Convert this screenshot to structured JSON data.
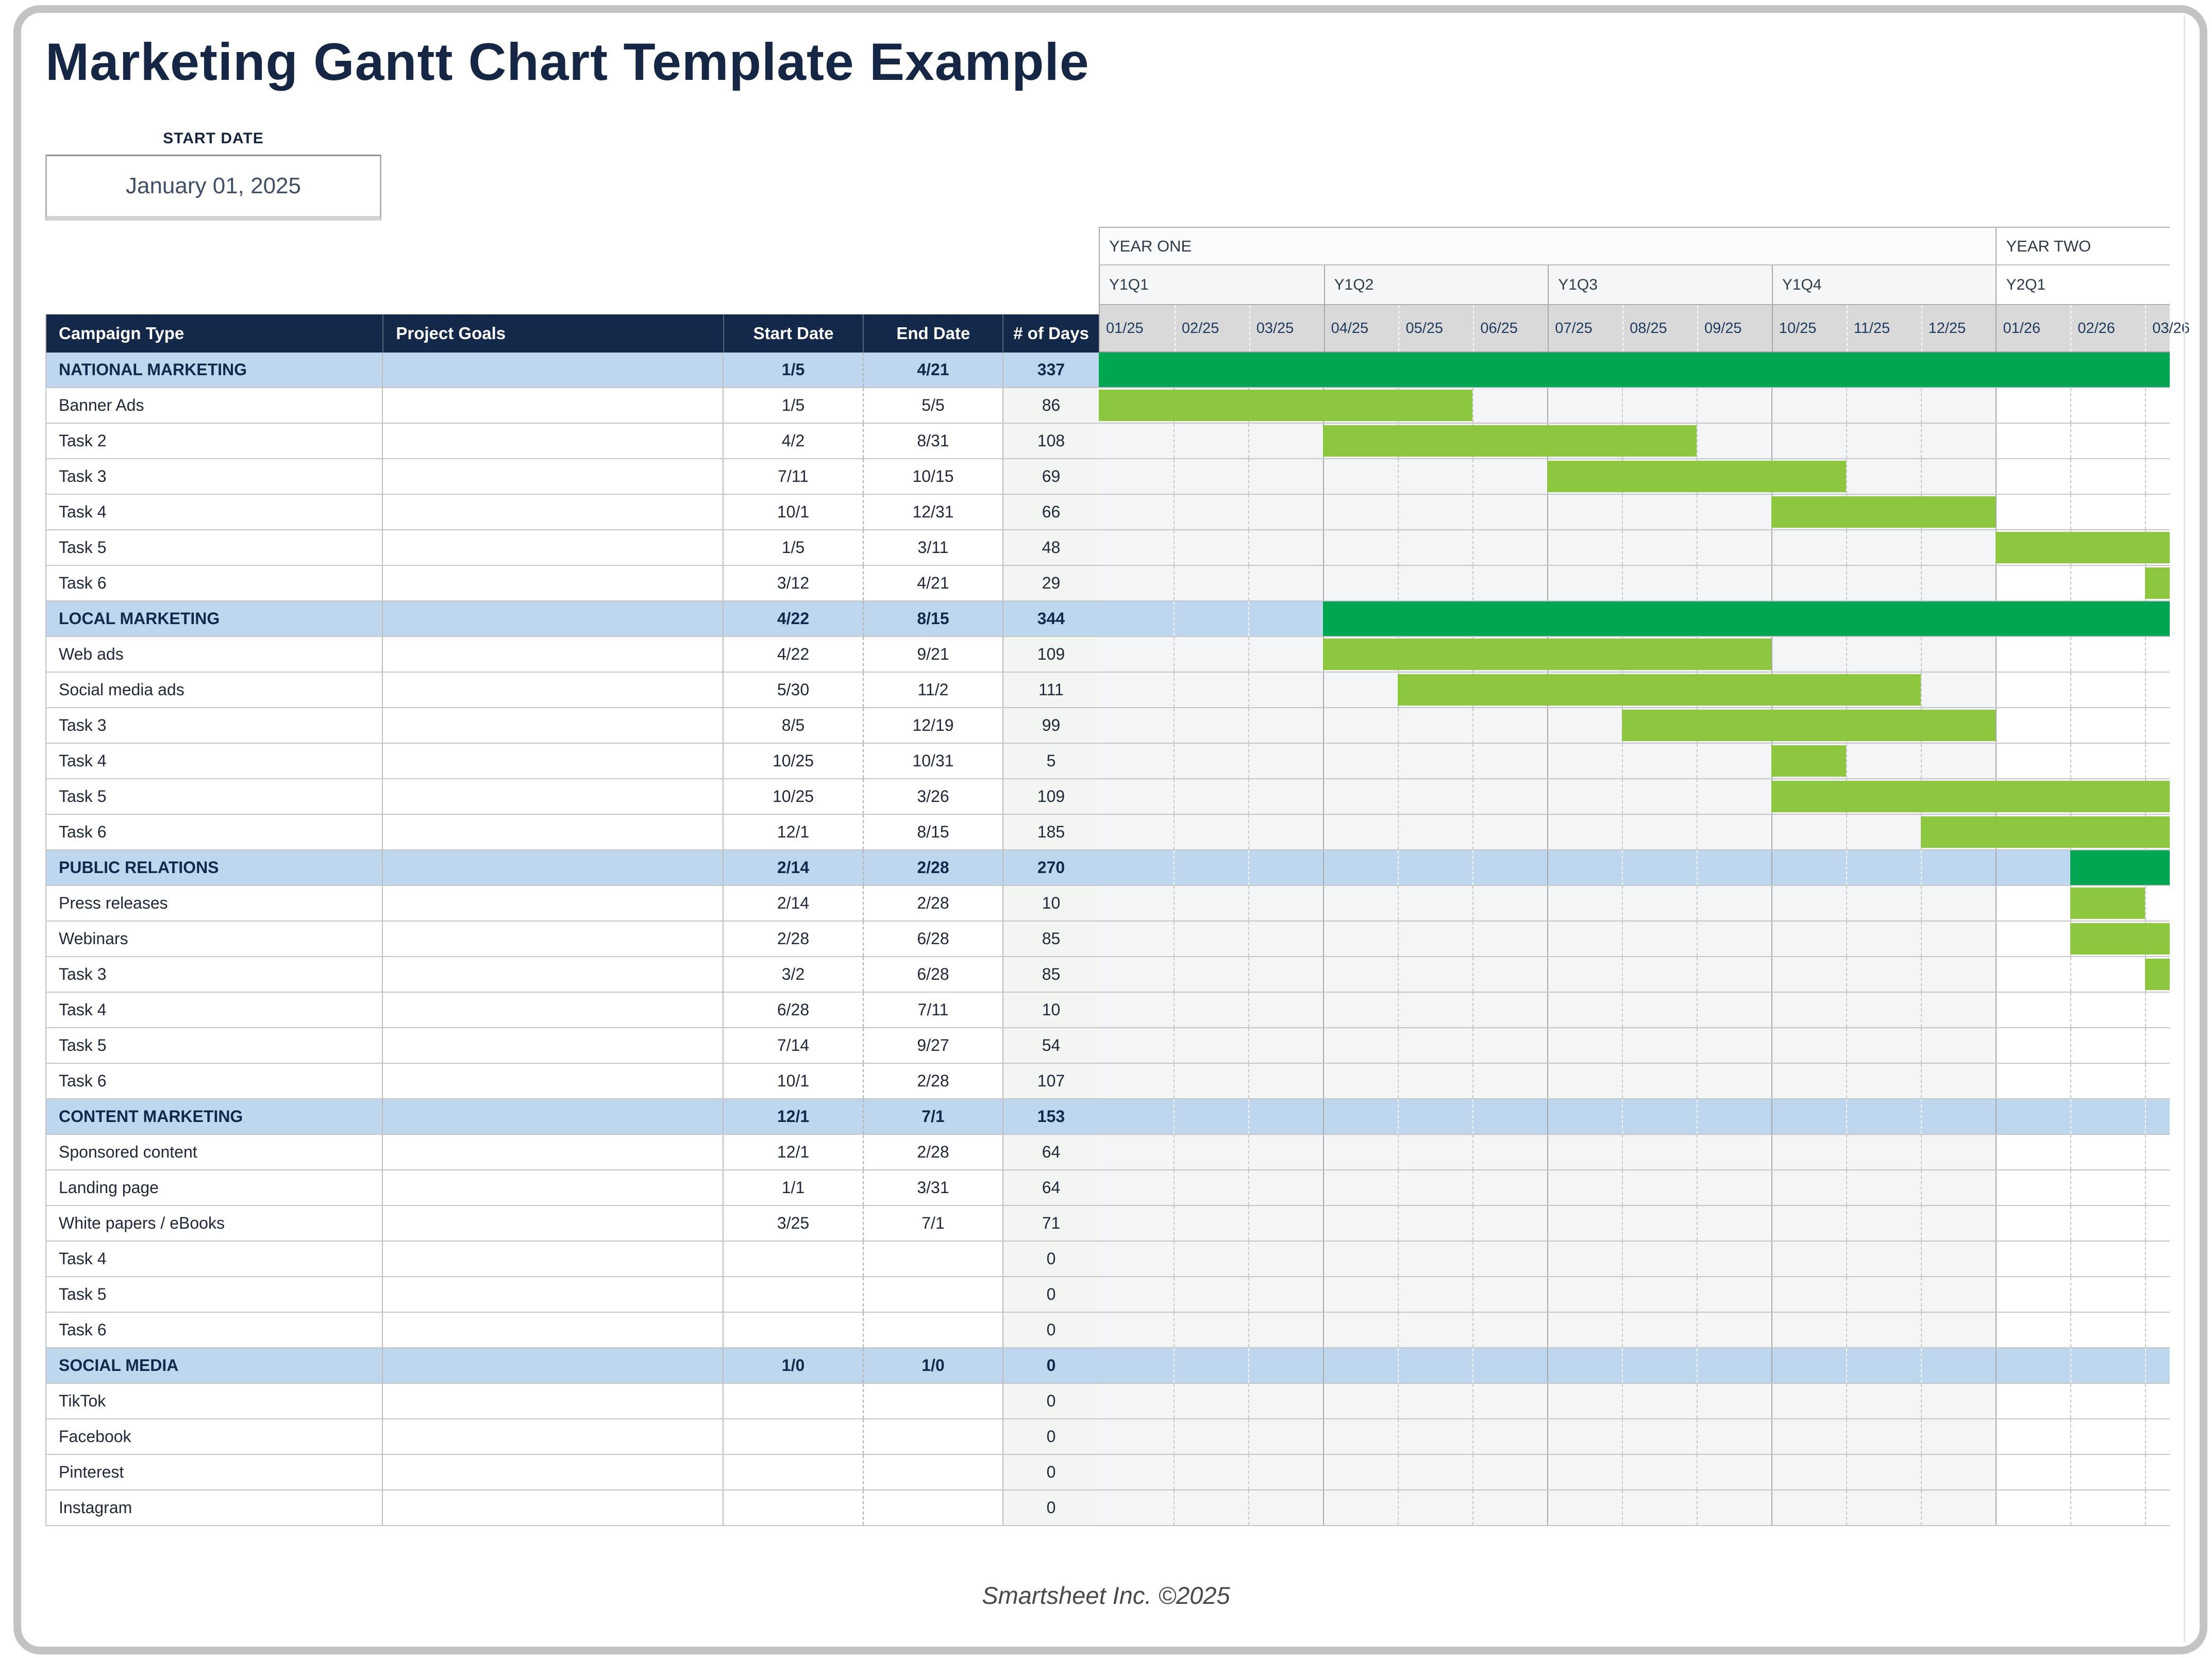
{
  "header": {
    "title": "Marketing Gantt Chart Template Example",
    "start_date_label": "START DATE",
    "start_date_value": "January 01, 2025"
  },
  "footer": {
    "text": "Smartsheet Inc. ©2025"
  },
  "table": {
    "columns": [
      "Campaign Type",
      "Project Goals",
      "Start Date",
      "End Date",
      "# of Days"
    ]
  },
  "gantt": {
    "visible_months": 14.33,
    "years": [
      {
        "label": "YEAR ONE",
        "span": 12
      },
      {
        "label": "YEAR TWO",
        "span": 2.33
      }
    ],
    "quarters": [
      {
        "label": "Y1Q1",
        "span": 3
      },
      {
        "label": "Y1Q2",
        "span": 3
      },
      {
        "label": "Y1Q3",
        "span": 3
      },
      {
        "label": "Y1Q4",
        "span": 3
      },
      {
        "label": "Y2Q1",
        "span": 2.33
      }
    ],
    "months": [
      "01/25",
      "02/25",
      "03/25",
      "04/25",
      "05/25",
      "06/25",
      "07/25",
      "08/25",
      "09/25",
      "10/25",
      "11/25",
      "12/25",
      "01/26",
      "02/26",
      "03/26"
    ],
    "colors": {
      "section_bar": "#00a651",
      "task_bar": "#8dc63f",
      "section_row_bg": "#bed7ee",
      "header_bg": "#14294a"
    }
  },
  "rows": [
    {
      "type": "section",
      "label": "NATIONAL MARKETING",
      "goals": "",
      "start": "1/5",
      "end": "4/21",
      "days": "337",
      "bar": {
        "from": 0,
        "to": 14.33
      }
    },
    {
      "type": "task",
      "label": "Banner Ads",
      "goals": "",
      "start": "1/5",
      "end": "5/5",
      "days": "86",
      "bar": {
        "from": 0,
        "to": 5
      }
    },
    {
      "type": "task",
      "label": "Task 2",
      "goals": "",
      "start": "4/2",
      "end": "8/31",
      "days": "108",
      "bar": {
        "from": 3,
        "to": 8
      }
    },
    {
      "type": "task",
      "label": "Task 3",
      "goals": "",
      "start": "7/11",
      "end": "10/15",
      "days": "69",
      "bar": {
        "from": 6,
        "to": 10
      }
    },
    {
      "type": "task",
      "label": "Task 4",
      "goals": "",
      "start": "10/1",
      "end": "12/31",
      "days": "66",
      "bar": {
        "from": 9,
        "to": 12
      }
    },
    {
      "type": "task",
      "label": "Task 5",
      "goals": "",
      "start": "1/5",
      "end": "3/11",
      "days": "48",
      "bar": {
        "from": 12,
        "to": 14.33
      }
    },
    {
      "type": "task",
      "label": "Task 6",
      "goals": "",
      "start": "3/12",
      "end": "4/21",
      "days": "29",
      "bar": {
        "from": 14,
        "to": 14.33
      }
    },
    {
      "type": "section",
      "label": "LOCAL MARKETING",
      "goals": "",
      "start": "4/22",
      "end": "8/15",
      "days": "344",
      "bar": {
        "from": 3,
        "to": 14.33
      }
    },
    {
      "type": "task",
      "label": "Web ads",
      "goals": "",
      "start": "4/22",
      "end": "9/21",
      "days": "109",
      "bar": {
        "from": 3,
        "to": 9
      }
    },
    {
      "type": "task",
      "label": "Social media ads",
      "goals": "",
      "start": "5/30",
      "end": "11/2",
      "days": "111",
      "bar": {
        "from": 4,
        "to": 11
      }
    },
    {
      "type": "task",
      "label": "Task 3",
      "goals": "",
      "start": "8/5",
      "end": "12/19",
      "days": "99",
      "bar": {
        "from": 7,
        "to": 12
      }
    },
    {
      "type": "task",
      "label": "Task 4",
      "goals": "",
      "start": "10/25",
      "end": "10/31",
      "days": "5",
      "bar": {
        "from": 9,
        "to": 10
      }
    },
    {
      "type": "task",
      "label": "Task 5",
      "goals": "",
      "start": "10/25",
      "end": "3/26",
      "days": "109",
      "bar": {
        "from": 9,
        "to": 14.33
      }
    },
    {
      "type": "task",
      "label": "Task 6",
      "goals": "",
      "start": "12/1",
      "end": "8/15",
      "days": "185",
      "bar": {
        "from": 11,
        "to": 14.33
      }
    },
    {
      "type": "section",
      "label": "PUBLIC RELATIONS",
      "goals": "",
      "start": "2/14",
      "end": "2/28",
      "days": "270",
      "bar": {
        "from": 13,
        "to": 14.33
      }
    },
    {
      "type": "task",
      "label": "Press releases",
      "goals": "",
      "start": "2/14",
      "end": "2/28",
      "days": "10",
      "bar": {
        "from": 13,
        "to": 14
      }
    },
    {
      "type": "task",
      "label": "Webinars",
      "goals": "",
      "start": "2/28",
      "end": "6/28",
      "days": "85",
      "bar": {
        "from": 13,
        "to": 14.33
      }
    },
    {
      "type": "task",
      "label": "Task 3",
      "goals": "",
      "start": "3/2",
      "end": "6/28",
      "days": "85",
      "bar": {
        "from": 14,
        "to": 14.33
      }
    },
    {
      "type": "task",
      "label": "Task 4",
      "goals": "",
      "start": "6/28",
      "end": "7/11",
      "days": "10",
      "bar": null
    },
    {
      "type": "task",
      "label": "Task 5",
      "goals": "",
      "start": "7/14",
      "end": "9/27",
      "days": "54",
      "bar": null
    },
    {
      "type": "task",
      "label": "Task 6",
      "goals": "",
      "start": "10/1",
      "end": "2/28",
      "days": "107",
      "bar": null
    },
    {
      "type": "section",
      "label": "CONTENT MARKETING",
      "goals": "",
      "start": "12/1",
      "end": "7/1",
      "days": "153",
      "bar": null
    },
    {
      "type": "task",
      "label": "Sponsored content",
      "goals": "",
      "start": "12/1",
      "end": "2/28",
      "days": "64",
      "bar": null
    },
    {
      "type": "task",
      "label": "Landing page",
      "goals": "",
      "start": "1/1",
      "end": "3/31",
      "days": "64",
      "bar": null
    },
    {
      "type": "task",
      "label": "White papers / eBooks",
      "goals": "",
      "start": "3/25",
      "end": "7/1",
      "days": "71",
      "bar": null
    },
    {
      "type": "task",
      "label": "Task 4",
      "goals": "",
      "start": "",
      "end": "",
      "days": "0",
      "bar": null
    },
    {
      "type": "task",
      "label": "Task 5",
      "goals": "",
      "start": "",
      "end": "",
      "days": "0",
      "bar": null
    },
    {
      "type": "task",
      "label": "Task 6",
      "goals": "",
      "start": "",
      "end": "",
      "days": "0",
      "bar": null
    },
    {
      "type": "section",
      "label": "SOCIAL MEDIA",
      "goals": "",
      "start": "1/0",
      "end": "1/0",
      "days": "0",
      "bar": null
    },
    {
      "type": "task",
      "label": "TikTok",
      "goals": "",
      "start": "",
      "end": "",
      "days": "0",
      "bar": null
    },
    {
      "type": "task",
      "label": "Facebook",
      "goals": "",
      "start": "",
      "end": "",
      "days": "0",
      "bar": null
    },
    {
      "type": "task",
      "label": "Pinterest",
      "goals": "",
      "start": "",
      "end": "",
      "days": "0",
      "bar": null
    },
    {
      "type": "task",
      "label": "Instagram",
      "goals": "",
      "start": "",
      "end": "",
      "days": "0",
      "bar": null
    }
  ]
}
